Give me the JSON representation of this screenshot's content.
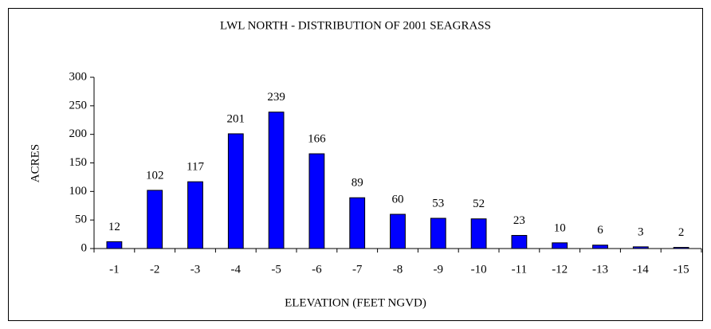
{
  "chart_data": {
    "type": "bar",
    "title": "LWL NORTH - DISTRIBUTION OF 2001 SEAGRASS",
    "x_label": "ELEVATION  (FEET NGVD)",
    "y_label": "ACRES",
    "categories": [
      "-1",
      "-2",
      "-3",
      "-4",
      "-5",
      "-6",
      "-7",
      "-8",
      "-9",
      "-10",
      "-11",
      "-12",
      "-13",
      "-14",
      "-15"
    ],
    "values": [
      12,
      102,
      117,
      201,
      239,
      166,
      89,
      60,
      53,
      52,
      23,
      10,
      6,
      3,
      2
    ],
    "color": "#0000ff",
    "ylim": [
      0,
      300
    ],
    "yticks": [
      0,
      50,
      100,
      150,
      200,
      250,
      300
    ],
    "grid": false
  }
}
